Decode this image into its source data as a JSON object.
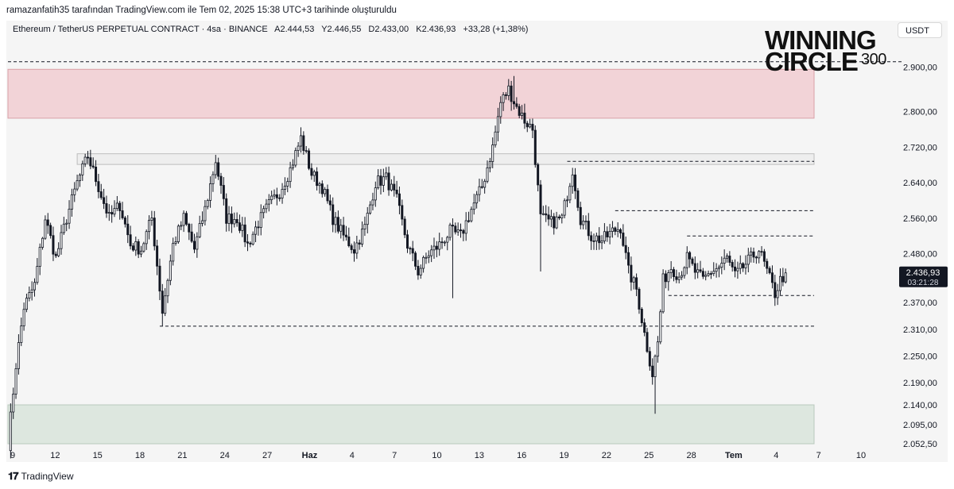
{
  "header": {
    "caption": "ramazanfatih35 tarafından TradingView.com ile Tem 02, 2025 15:38 UTC+3 tarihinde oluşturuldu"
  },
  "legend": {
    "symbol": "Ethereum / TetherUS PERPETUAL CONTRACT · 4sa · BINANCE",
    "open": "A2.444,53",
    "high": "Y2.446,55",
    "low": "D2.433,00",
    "close": "K2.436,93",
    "change": "+33,28 (+1,38%)"
  },
  "currency": "USDT",
  "logo": {
    "line1": "WINNING",
    "line2": "CIRCLE",
    "line3": "300"
  },
  "footer": {
    "brand": "TradingView"
  },
  "colors": {
    "background": "#f5f5f5",
    "resistance_zone": "#f2d3d7",
    "resistance_border": "#d9a0a7",
    "support_zone": "#dde7df",
    "support_border": "#b9c9bd",
    "candle": "#131722",
    "last_price_label": "#131722"
  },
  "chart_data": {
    "type": "candlestick",
    "symbol": "ETHUSDT.P",
    "timeframe": "4sa",
    "y_axis_ticks": [
      2900,
      2800,
      2720,
      2640,
      2560,
      2480,
      2370,
      2310,
      2250,
      2190,
      2140,
      2095,
      2052.5
    ],
    "y_tick_labels": [
      "2.900,00",
      "2.800,00",
      "2.720,00",
      "2.640,00",
      "2.560,00",
      "2.480,00",
      "2.370,00",
      "2.310,00",
      "2.250,00",
      "2.190,00",
      "2.140,00",
      "2.095,00",
      "2.052,50"
    ],
    "x_tick_labels": [
      "9",
      "12",
      "15",
      "18",
      "21",
      "24",
      "27",
      "Haz",
      "4",
      "7",
      "10",
      "13",
      "16",
      "19",
      "22",
      "25",
      "28",
      "Tem",
      "4",
      "7",
      "10"
    ],
    "last_price": {
      "price": "2.436,93",
      "countdown": "03:21:28"
    },
    "zones": [
      {
        "name": "resistance",
        "from": 2785,
        "to": 2895
      },
      {
        "name": "mid-box",
        "from": 2681,
        "to": 2705
      },
      {
        "name": "support",
        "from": 2052.5,
        "to": 2140
      }
    ],
    "levels": [
      {
        "price": 2912,
        "from_index": 0
      },
      {
        "price": 2688,
        "from_index": 210
      },
      {
        "price": 2577,
        "from_index": 228
      },
      {
        "price": 2520,
        "from_index": 255
      },
      {
        "price": 2386,
        "from_index": 248
      },
      {
        "price": 2317,
        "from_index": 57
      }
    ],
    "path": [
      [
        0,
        2052
      ],
      [
        3,
        2230
      ],
      [
        6,
        2360
      ],
      [
        10,
        2410
      ],
      [
        14,
        2560
      ],
      [
        18,
        2470
      ],
      [
        22,
        2560
      ],
      [
        26,
        2640
      ],
      [
        30,
        2700
      ],
      [
        34,
        2630
      ],
      [
        38,
        2560
      ],
      [
        42,
        2590
      ],
      [
        46,
        2500
      ],
      [
        50,
        2490
      ],
      [
        54,
        2560
      ],
      [
        58,
        2350
      ],
      [
        62,
        2500
      ],
      [
        66,
        2560
      ],
      [
        70,
        2490
      ],
      [
        74,
        2580
      ],
      [
        78,
        2690
      ],
      [
        82,
        2560
      ],
      [
        86,
        2560
      ],
      [
        90,
        2500
      ],
      [
        94,
        2550
      ],
      [
        98,
        2590
      ],
      [
        102,
        2620
      ],
      [
        106,
        2670
      ],
      [
        110,
        2740
      ],
      [
        114,
        2660
      ],
      [
        118,
        2630
      ],
      [
        122,
        2560
      ],
      [
        126,
        2520
      ],
      [
        130,
        2490
      ],
      [
        134,
        2540
      ],
      [
        138,
        2640
      ],
      [
        142,
        2650
      ],
      [
        146,
        2600
      ],
      [
        150,
        2500
      ],
      [
        154,
        2440
      ],
      [
        158,
        2480
      ],
      [
        162,
        2500
      ],
      [
        166,
        2530
      ],
      [
        170,
        2520
      ],
      [
        174,
        2580
      ],
      [
        178,
        2630
      ],
      [
        182,
        2720
      ],
      [
        185,
        2820
      ],
      [
        188,
        2850
      ],
      [
        191,
        2810
      ],
      [
        194,
        2780
      ],
      [
        197,
        2760
      ],
      [
        200,
        2560
      ],
      [
        204,
        2550
      ],
      [
        208,
        2560
      ],
      [
        212,
        2670
      ],
      [
        215,
        2560
      ],
      [
        219,
        2520
      ],
      [
        223,
        2510
      ],
      [
        227,
        2530
      ],
      [
        230,
        2540
      ],
      [
        233,
        2440
      ],
      [
        236,
        2400
      ],
      [
        239,
        2300
      ],
      [
        242,
        2210
      ],
      [
        244,
        2280
      ],
      [
        246,
        2420
      ],
      [
        249,
        2450
      ],
      [
        252,
        2430
      ],
      [
        255,
        2470
      ],
      [
        258,
        2440
      ],
      [
        261,
        2420
      ],
      [
        264,
        2440
      ],
      [
        267,
        2450
      ],
      [
        270,
        2470
      ],
      [
        273,
        2430
      ],
      [
        276,
        2450
      ],
      [
        279,
        2470
      ],
      [
        282,
        2490
      ],
      [
        285,
        2440
      ],
      [
        288,
        2390
      ],
      [
        290,
        2420
      ],
      [
        292,
        2437
      ]
    ],
    "special_wicks": [
      {
        "index": 58,
        "low": 2317
      },
      {
        "index": 167,
        "low": 2380
      },
      {
        "index": 190,
        "high": 2880
      },
      {
        "index": 200,
        "low": 2440
      },
      {
        "index": 243,
        "low": 2120
      }
    ],
    "grid": false
  }
}
